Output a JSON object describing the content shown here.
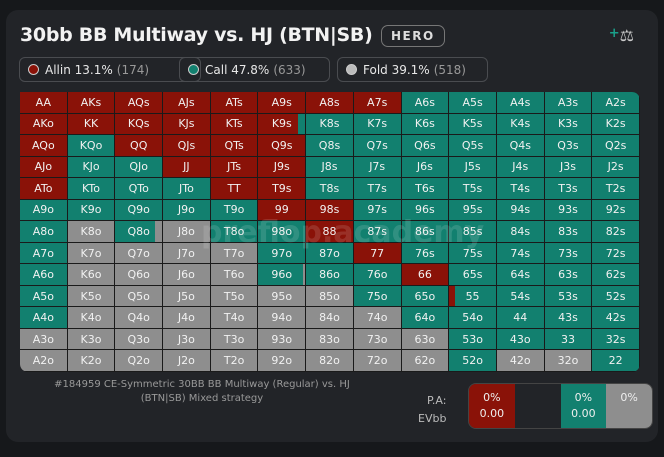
{
  "header": {
    "title": "30bb BB Multiway vs. HJ (BTN|SB)",
    "badge": "HERO",
    "icon": "scale-compare-icon"
  },
  "legend": [
    {
      "label": "Allin 13.1%",
      "count": "(174)",
      "color": "#8a1208"
    },
    {
      "label": "Call 47.8%",
      "count": "(633)",
      "color": "#12806f"
    },
    {
      "label": "Fold 39.1%",
      "count": "(518)",
      "color": "#8e8e8e"
    }
  ],
  "colors": {
    "allin": "#8a1208",
    "call": "#12806f",
    "fold": "#8e8e8e"
  },
  "grid": {
    "labels": [
      [
        "AA",
        "AKs",
        "AQs",
        "AJs",
        "ATs",
        "A9s",
        "A8s",
        "A7s",
        "A6s",
        "A5s",
        "A4s",
        "A3s",
        "A2s"
      ],
      [
        "AKo",
        "KK",
        "KQs",
        "KJs",
        "KTs",
        "K9s",
        "K8s",
        "K7s",
        "K6s",
        "K5s",
        "K4s",
        "K3s",
        "K2s"
      ],
      [
        "AQo",
        "KQo",
        "QQ",
        "QJs",
        "QTs",
        "Q9s",
        "Q8s",
        "Q7s",
        "Q6s",
        "Q5s",
        "Q4s",
        "Q3s",
        "Q2s"
      ],
      [
        "AJo",
        "KJo",
        "QJo",
        "JJ",
        "JTs",
        "J9s",
        "J8s",
        "J7s",
        "J6s",
        "J5s",
        "J4s",
        "J3s",
        "J2s"
      ],
      [
        "ATo",
        "KTo",
        "QTo",
        "JTo",
        "TT",
        "T9s",
        "T8s",
        "T7s",
        "T6s",
        "T5s",
        "T4s",
        "T3s",
        "T2s"
      ],
      [
        "A9o",
        "K9o",
        "Q9o",
        "J9o",
        "T9o",
        "99",
        "98s",
        "97s",
        "96s",
        "95s",
        "94s",
        "93s",
        "92s"
      ],
      [
        "A8o",
        "K8o",
        "Q8o",
        "J8o",
        "T8o",
        "98o",
        "88",
        "87s",
        "86s",
        "85s",
        "84s",
        "83s",
        "82s"
      ],
      [
        "A7o",
        "K7o",
        "Q7o",
        "J7o",
        "T7o",
        "97o",
        "87o",
        "77",
        "76s",
        "75s",
        "74s",
        "73s",
        "72s"
      ],
      [
        "A6o",
        "K6o",
        "Q6o",
        "J6o",
        "T6o",
        "96o",
        "86o",
        "76o",
        "66",
        "65s",
        "64s",
        "63s",
        "62s"
      ],
      [
        "A5o",
        "K5o",
        "Q5o",
        "J5o",
        "T5o",
        "95o",
        "85o",
        "75o",
        "65o",
        "55",
        "54s",
        "53s",
        "52s"
      ],
      [
        "A4o",
        "K4o",
        "Q4o",
        "J4o",
        "T4o",
        "94o",
        "84o",
        "74o",
        "64o",
        "54o",
        "44",
        "43s",
        "42s"
      ],
      [
        "A3o",
        "K3o",
        "Q3o",
        "J3o",
        "T3o",
        "93o",
        "83o",
        "73o",
        "63o",
        "53o",
        "43o",
        "33",
        "32s"
      ],
      [
        "A2o",
        "K2o",
        "Q2o",
        "J2o",
        "T2o",
        "92o",
        "82o",
        "72o",
        "62o",
        "52o",
        "42o",
        "32o",
        "22"
      ]
    ],
    "actions": [
      "RRRRRRRRCCCCC",
      "RRRRRMCCCCCCC",
      "RCRRRRCCCCCCC",
      "RCCRRRCCCCCCC",
      "RCCCRRCCCCCCC",
      "CCCCCRRCCCCCC",
      "CFMFCCRCCCCCC",
      "CFFFFCCRCCCCC",
      "CFFFFMCCRCCCC",
      "CFFFFFFCCMCCC",
      "CFFFFFFFCCCCC",
      "FFFFFFFFFCCCC",
      "FFFFFFFFFCFFC"
    ],
    "mixed": {
      "K9s": [
        0.85,
        0.15,
        0
      ],
      "Q8o": [
        0,
        0.85,
        0.15
      ],
      "96o": [
        0,
        0.95,
        0.05
      ],
      "55": [
        0.12,
        0.88,
        0
      ]
    }
  },
  "watermark": "preflop.academy",
  "footer": {
    "description": "#184959 CE-Symmetric 30BB BB Multiway (Regular) vs. HJ (BTN|SB) Mixed strategy"
  },
  "summary": {
    "pa_label": "P.A:",
    "ev_label": "EVbb",
    "allin_pa": "0%",
    "allin_ev": "0.00",
    "call_pa": "0%",
    "call_ev": "0.00",
    "fold_pa": "0%"
  }
}
